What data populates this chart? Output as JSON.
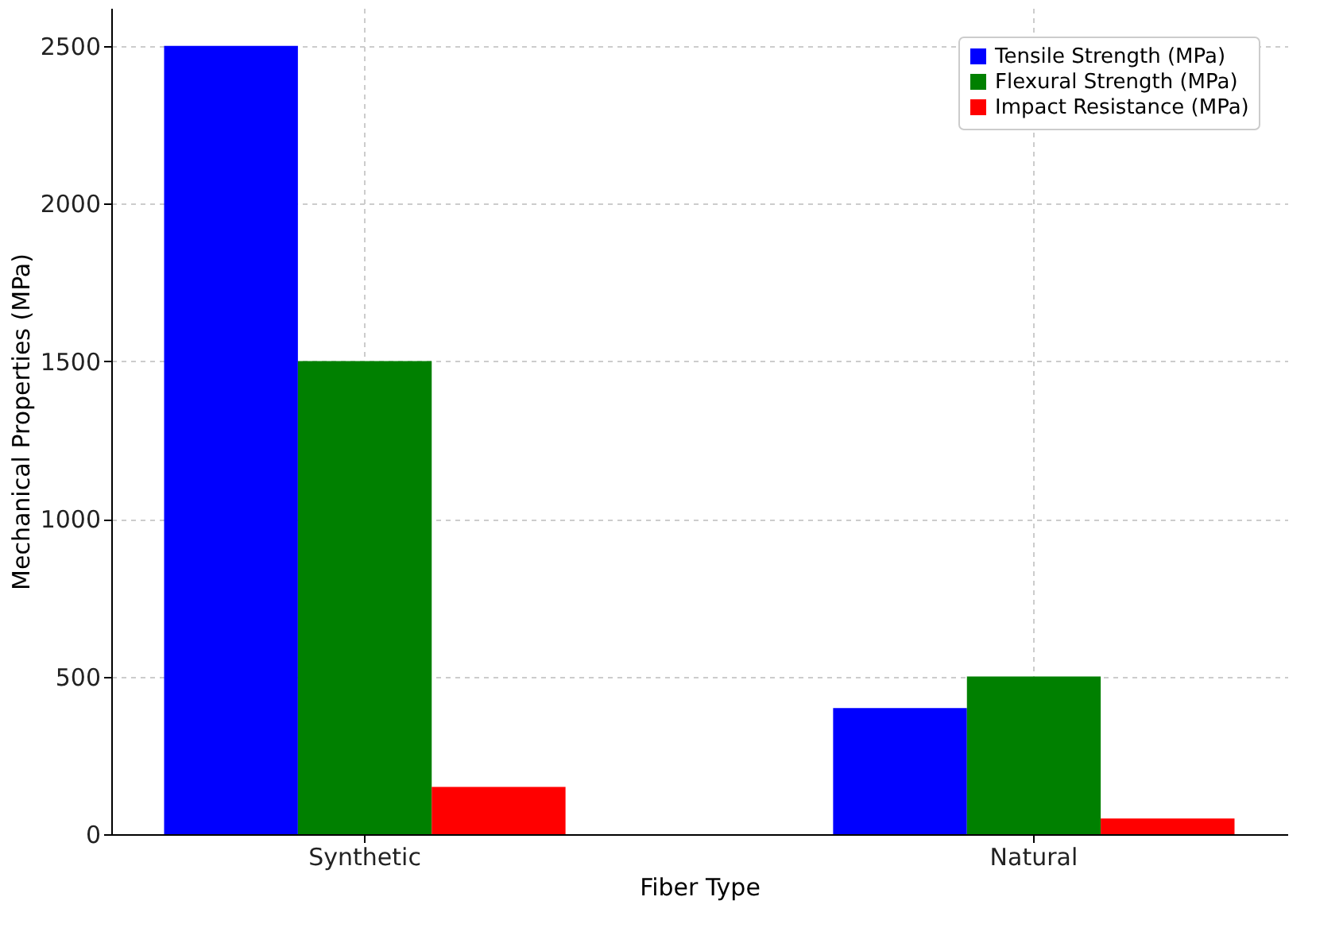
{
  "chart_data": {
    "type": "bar",
    "xlabel": "Fiber Type",
    "ylabel": "Mechanical Properties (MPa)",
    "categories": [
      "Synthetic",
      "Natural"
    ],
    "series": [
      {
        "name": "Tensile Strength (MPa)",
        "color": "#0000ff",
        "values": [
          2500,
          400
        ]
      },
      {
        "name": "Flexural Strength (MPa)",
        "color": "#008000",
        "values": [
          1500,
          500
        ]
      },
      {
        "name": "Impact Resistance (MPa)",
        "color": "#ff0000",
        "values": [
          150,
          50
        ]
      }
    ],
    "ylim": [
      0,
      2620
    ],
    "yticks": [
      0,
      500,
      1000,
      1500,
      2000,
      2500
    ],
    "grid": true,
    "legend": "top right"
  }
}
